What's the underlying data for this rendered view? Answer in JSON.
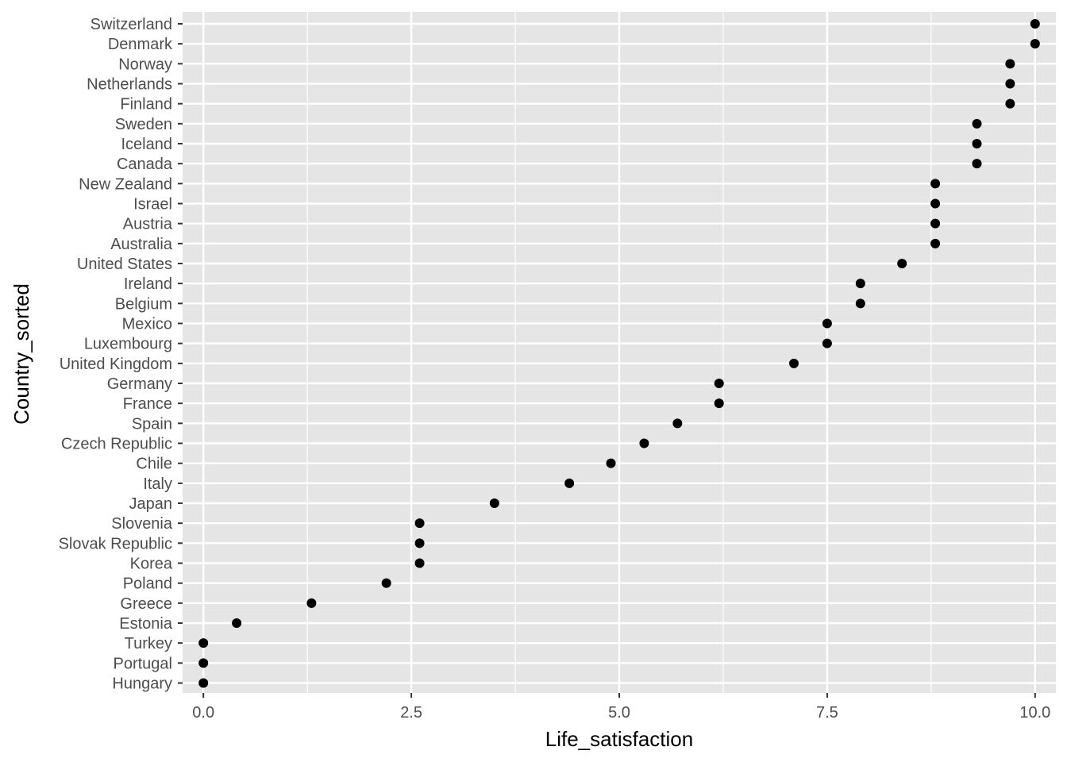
{
  "chart_data": {
    "type": "scatter",
    "xlabel": "Life_satisfaction",
    "ylabel": "Country_sorted",
    "xlim": [
      -0.25,
      10.25
    ],
    "x_ticks": [
      0.0,
      2.5,
      5.0,
      7.5,
      10.0
    ],
    "x_tick_labels": [
      "0.0",
      "2.5",
      "5.0",
      "7.5",
      "10.0"
    ],
    "grid": true,
    "panel_background": "#e5e5e5",
    "grid_color": "#ffffff",
    "point_color": "#000000",
    "categories": [
      "Switzerland",
      "Denmark",
      "Norway",
      "Netherlands",
      "Finland",
      "Sweden",
      "Iceland",
      "Canada",
      "New Zealand",
      "Israel",
      "Austria",
      "Australia",
      "United States",
      "Ireland",
      "Belgium",
      "Mexico",
      "Luxembourg",
      "United Kingdom",
      "Germany",
      "France",
      "Spain",
      "Czech Republic",
      "Chile",
      "Italy",
      "Japan",
      "Slovenia",
      "Slovak Republic",
      "Korea",
      "Poland",
      "Greece",
      "Estonia",
      "Turkey",
      "Portugal",
      "Hungary"
    ],
    "values": [
      10.0,
      10.0,
      9.7,
      9.7,
      9.7,
      9.3,
      9.3,
      9.3,
      8.8,
      8.8,
      8.8,
      8.8,
      8.4,
      7.9,
      7.9,
      7.5,
      7.5,
      7.1,
      6.2,
      6.2,
      5.7,
      5.3,
      4.9,
      4.4,
      3.5,
      2.6,
      2.6,
      2.6,
      2.2,
      1.3,
      0.4,
      0.0,
      0.0,
      0.0
    ]
  }
}
